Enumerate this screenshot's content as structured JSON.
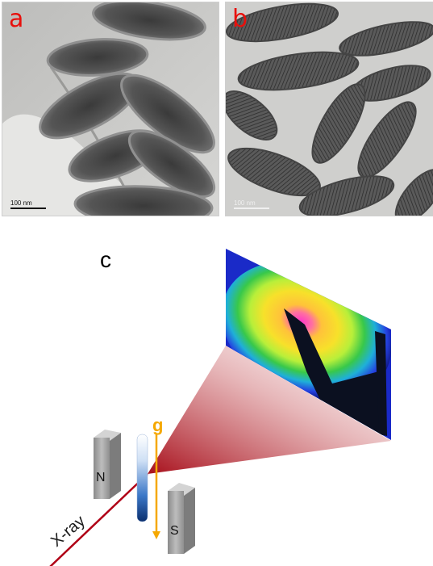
{
  "panels": {
    "a": {
      "label": "a",
      "scale_bar": "100 nm"
    },
    "b": {
      "label": "b",
      "scale_bar": "100 nm"
    },
    "c": {
      "label": "c",
      "magnet_north": "N",
      "magnet_south": "S",
      "gravity": "g",
      "beam": "X-ray"
    }
  },
  "colors": {
    "label_red": "#e8100c",
    "gravity_orange": "#f5a800",
    "beam_red": "#b00016",
    "tube_blue": "#0b3f86"
  }
}
